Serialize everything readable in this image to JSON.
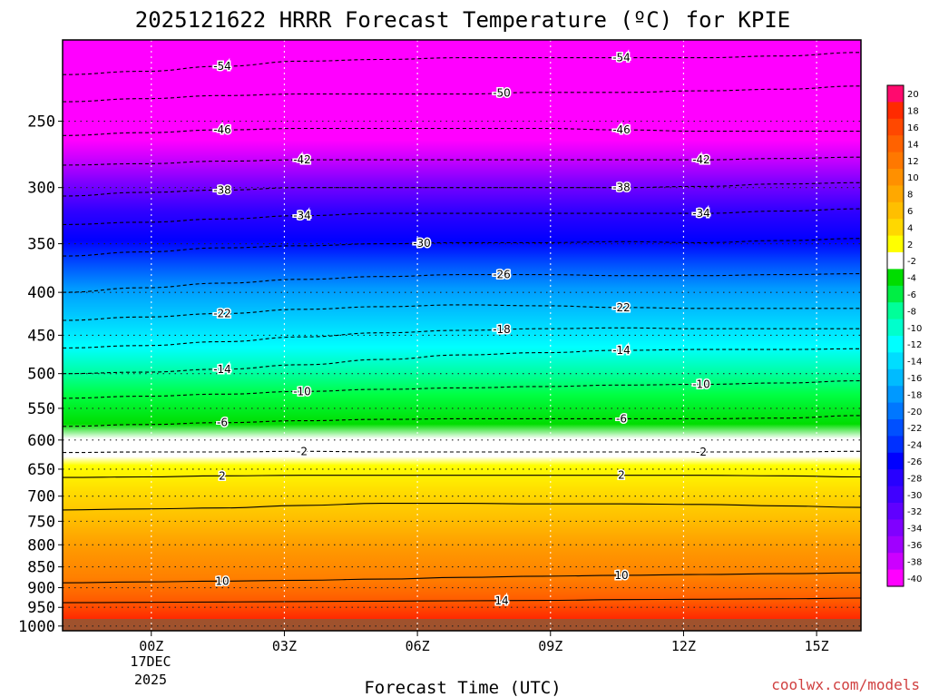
{
  "chart_data": {
    "type": "heatmap",
    "title": "2025121622 HRRR Forecast Temperature (ºC) for KPIE",
    "xlabel": "Forecast Time (UTC)",
    "ylabel": "",
    "credit": "coolwx.com/models",
    "x_ticks": [
      "00Z",
      "03Z",
      "06Z",
      "09Z",
      "12Z",
      "15Z"
    ],
    "x_date_label": [
      "17DEC",
      "2025"
    ],
    "x_range_hours": [
      -2,
      16
    ],
    "y_ticks": [
      "250",
      "300",
      "350",
      "400",
      "450",
      "500",
      "550",
      "600",
      "650",
      "700",
      "750",
      "800",
      "850",
      "900",
      "950",
      "1000"
    ],
    "y_range_hpa": [
      200,
      1013
    ],
    "colorbar_labels": [
      "20",
      "18",
      "16",
      "14",
      "12",
      "10",
      "8",
      "6",
      "4",
      "2",
      "-2",
      "-4",
      "-6",
      "-8",
      "-10",
      "-12",
      "-14",
      "-16",
      "-18",
      "-20",
      "-22",
      "-24",
      "-26",
      "-28",
      "-30",
      "-32",
      "-34",
      "-36",
      "-38",
      "-40"
    ],
    "colorbar_colors": [
      "#ff0a6e",
      "#ff2a00",
      "#ff4800",
      "#ff6200",
      "#ff7800",
      "#ff9000",
      "#ffa800",
      "#ffbf00",
      "#ffd800",
      "#ffff00",
      "#ffffff",
      "#00dd00",
      "#00ee44",
      "#00ff99",
      "#00ffcc",
      "#00ffff",
      "#00ddff",
      "#00bbff",
      "#0099ff",
      "#0077ff",
      "#0050ff",
      "#0030ff",
      "#0000ff",
      "#2800ff",
      "#4000ff",
      "#6000ff",
      "#8000ff",
      "#a000ff",
      "#cc00ff",
      "#ff00ff"
    ],
    "contour_lines": [
      {
        "level": -54,
        "p": [
          220,
          218,
          215,
          212,
          211,
          210,
          210,
          210,
          210,
          209,
          207
        ],
        "labels": [
          "-54",
          "-54"
        ]
      },
      {
        "level": -50,
        "p": [
          237,
          235,
          233,
          232,
          232,
          232,
          231,
          231,
          230,
          229,
          227
        ],
        "labels": [
          "-50"
        ]
      },
      {
        "level": -46,
        "p": [
          260,
          258,
          256,
          255,
          255,
          255,
          255,
          256,
          257,
          257,
          257
        ],
        "labels": [
          "-46",
          "-46"
        ]
      },
      {
        "level": -42,
        "p": [
          282,
          281,
          279,
          278,
          278,
          278,
          278,
          278,
          278,
          277,
          276
        ],
        "labels": [
          "-42",
          "-42"
        ]
      },
      {
        "level": -38,
        "p": [
          307,
          304,
          302,
          300,
          300,
          300,
          300,
          300,
          299,
          297,
          296
        ],
        "labels": [
          "-38",
          "-38"
        ]
      },
      {
        "level": -34,
        "p": [
          332,
          330,
          327,
          324,
          322,
          322,
          322,
          322,
          322,
          320,
          318
        ],
        "labels": [
          "-34",
          "-34"
        ]
      },
      {
        "level": -30,
        "p": [
          362,
          358,
          354,
          352,
          350,
          349,
          349,
          348,
          349,
          347,
          345
        ],
        "labels": [
          "-30"
        ]
      },
      {
        "level": -26,
        "p": [
          400,
          395,
          390,
          386,
          383,
          381,
          381,
          382,
          382,
          381,
          380
        ],
        "labels": [
          "-26"
        ]
      },
      {
        "level": -22,
        "p": [
          432,
          428,
          424,
          419,
          416,
          414,
          415,
          417,
          418,
          418,
          418
        ],
        "labels": [
          "-22",
          "-22"
        ]
      },
      {
        "level": -18,
        "p": [
          466,
          463,
          458,
          452,
          447,
          444,
          442,
          441,
          442,
          442,
          442
        ],
        "labels": [
          "-18"
        ]
      },
      {
        "level": -14,
        "p": [
          500,
          498,
          494,
          488,
          481,
          475,
          472,
          469,
          468,
          468,
          467
        ],
        "labels": [
          "-14",
          "-14"
        ]
      },
      {
        "level": -10,
        "p": [
          535,
          532,
          529,
          525,
          522,
          520,
          518,
          516,
          515,
          513,
          510
        ],
        "labels": [
          "-10",
          "-10"
        ]
      },
      {
        "level": -6,
        "p": [
          578,
          575,
          572,
          569,
          567,
          566,
          566,
          566,
          566,
          565,
          561
        ],
        "labels": [
          "-6",
          "-6"
        ]
      },
      {
        "level": -2,
        "p": [
          621,
          620,
          620,
          619,
          620,
          620,
          620,
          620,
          620,
          620,
          619
        ],
        "labels": [
          "-2",
          "-2"
        ]
      },
      {
        "level": 2,
        "p": [
          665,
          664,
          662,
          661,
          661,
          661,
          661,
          661,
          661,
          662,
          664
        ],
        "labels": [
          "2",
          "2"
        ]
      },
      {
        "level": 6,
        "p": [
          727,
          725,
          723,
          718,
          714,
          714,
          715,
          715,
          716,
          719,
          722
        ],
        "labels": []
      },
      {
        "level": 10,
        "p": [
          888,
          886,
          884,
          882,
          879,
          875,
          872,
          870,
          868,
          866,
          864
        ],
        "labels": [
          "10",
          "10"
        ]
      },
      {
        "level": 14,
        "p": [
          938,
          937,
          936,
          935,
          934,
          933,
          932,
          930,
          929,
          928,
          926
        ],
        "labels": [
          "14"
        ]
      }
    ]
  }
}
